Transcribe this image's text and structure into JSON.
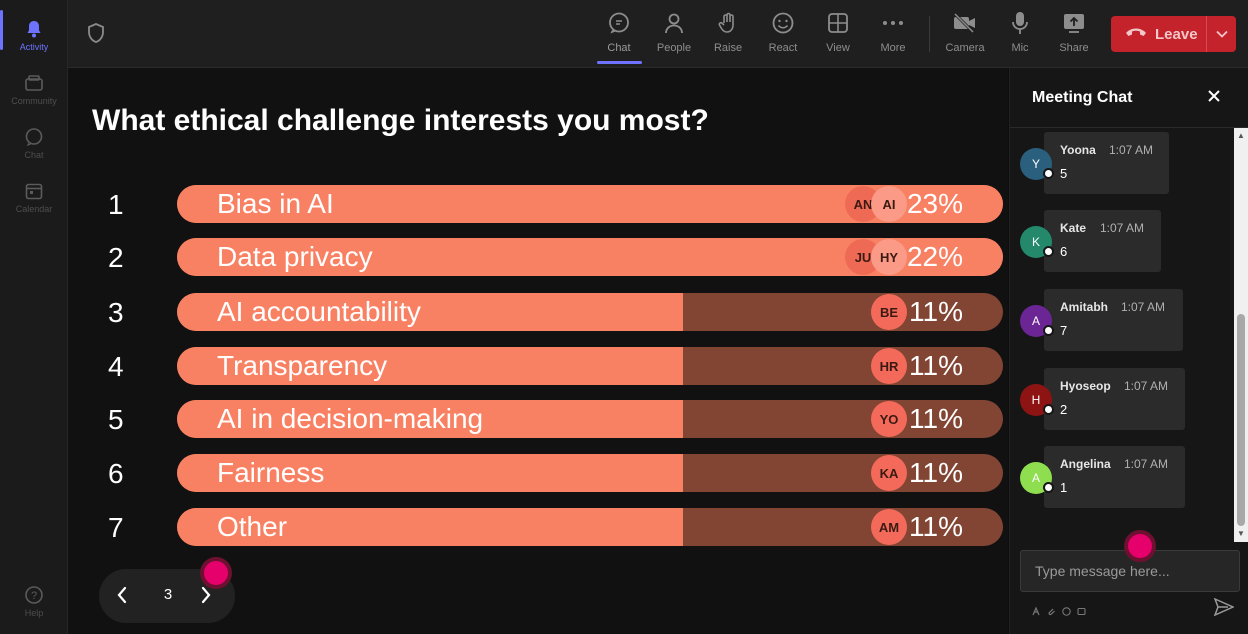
{
  "rail": {
    "items": [
      {
        "label": "Activity",
        "icon": "bell-icon"
      },
      {
        "label": "Community",
        "icon": "community-icon"
      },
      {
        "label": "Chat",
        "icon": "chat-bubble-icon"
      },
      {
        "label": "Calendar",
        "icon": "calendar-icon"
      }
    ],
    "help_label": "Help"
  },
  "toolbar": {
    "items": [
      {
        "label": "Chat",
        "icon": "chat-bubble-icon"
      },
      {
        "label": "People",
        "icon": "people-icon"
      },
      {
        "label": "Raise",
        "icon": "hand-icon"
      },
      {
        "label": "React",
        "icon": "smiley-icon"
      },
      {
        "label": "View",
        "icon": "grid-icon"
      },
      {
        "label": "More",
        "icon": "more-icon"
      },
      {
        "label": "Camera",
        "icon": "camera-off-icon"
      },
      {
        "label": "Mic",
        "icon": "mic-icon"
      },
      {
        "label": "Share",
        "icon": "share-icon"
      }
    ],
    "leave_label": "Leave",
    "leave_color": "#c4232c"
  },
  "poll": {
    "question": "What ethical challenge interests you most?",
    "options": [
      {
        "rank": "1",
        "label": "Bias in AI",
        "percent": "23%",
        "fill": 1.0,
        "avatars": [
          "AN",
          "AI"
        ]
      },
      {
        "rank": "2",
        "label": "Data privacy",
        "percent": "22%",
        "fill": 1.0,
        "avatars": [
          "JU",
          "HY"
        ]
      },
      {
        "rank": "3",
        "label": "AI accountability",
        "percent": "11%",
        "fill": 0.6125,
        "avatars": [
          "BE"
        ]
      },
      {
        "rank": "4",
        "label": "Transparency",
        "percent": "11%",
        "fill": 0.6125,
        "avatars": [
          "HR"
        ]
      },
      {
        "rank": "5",
        "label": "AI in decision-making",
        "percent": "11%",
        "fill": 0.6125,
        "avatars": [
          "YO"
        ]
      },
      {
        "rank": "6",
        "label": "Fairness",
        "percent": "11%",
        "fill": 0.6125,
        "avatars": [
          "KA"
        ]
      },
      {
        "rank": "7",
        "label": "Other",
        "percent": "11%",
        "fill": 0.6125,
        "avatars": [
          "AM"
        ]
      }
    ],
    "bar_fill_color": "#f98163",
    "bar_track_color": "#824534",
    "page": "3"
  },
  "chat": {
    "title": "Meeting Chat",
    "messages": [
      {
        "initial": "Y",
        "name": "Yoona",
        "time": "1:07 AM",
        "text": "5",
        "color": "#2a5f7e"
      },
      {
        "initial": "K",
        "name": "Kate",
        "time": "1:07 AM",
        "text": "6",
        "color": "#23896a"
      },
      {
        "initial": "A",
        "name": "Amitabh",
        "time": "1:07 AM",
        "text": "7",
        "color": "#6b2594"
      },
      {
        "initial": "H",
        "name": "Hyoseop",
        "time": "1:07 AM",
        "text": "2",
        "color": "#8e1414"
      },
      {
        "initial": "A",
        "name": "Angelina",
        "time": "1:07 AM",
        "text": "1",
        "color": "#8ede4f"
      }
    ],
    "input_placeholder": "Type message here..."
  }
}
